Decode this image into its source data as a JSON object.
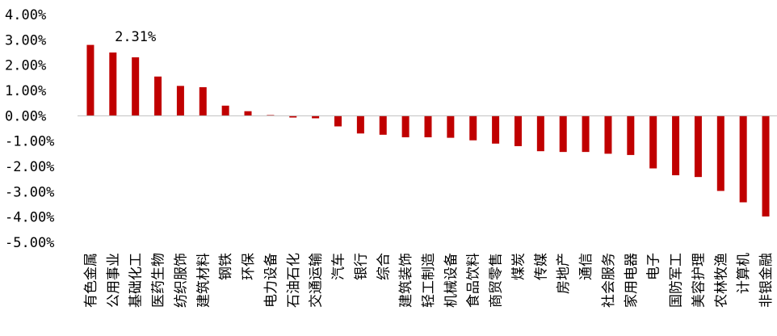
{
  "chart_data": {
    "type": "bar",
    "title": "",
    "xlabel": "",
    "ylabel": "",
    "ylim": [
      -5,
      4
    ],
    "y_ticks": [
      4,
      3,
      2,
      1,
      0,
      -1,
      -2,
      -3,
      -4,
      -5
    ],
    "y_tick_labels": [
      "4.00%",
      "3.00%",
      "2.00%",
      "1.00%",
      "0.00%",
      "-1.00%",
      "-2.00%",
      "-3.00%",
      "-4.00%",
      "-5.00%"
    ],
    "bar_color": "#C00000",
    "grid": false,
    "legend": "none",
    "categories": [
      "有色金属",
      "公用事业",
      "基础化工",
      "医药生物",
      "纺织服饰",
      "建筑材料",
      "钢铁",
      "环保",
      "电力设备",
      "石油石化",
      "交通运输",
      "汽车",
      "银行",
      "综合",
      "建筑装饰",
      "轻工制造",
      "机械设备",
      "食品饮料",
      "商贸零售",
      "煤炭",
      "传媒",
      "房地产",
      "通信",
      "社会服务",
      "家用电器",
      "电子",
      "国防军工",
      "美容护理",
      "农林牧渔",
      "计算机",
      "非银金融"
    ],
    "values": [
      2.8,
      2.5,
      2.31,
      1.55,
      1.18,
      1.13,
      0.4,
      0.18,
      0.03,
      -0.07,
      -0.1,
      -0.42,
      -0.7,
      -0.75,
      -0.85,
      -0.85,
      -0.87,
      -0.97,
      -1.1,
      -1.2,
      -1.4,
      -1.43,
      -1.43,
      -1.5,
      -1.55,
      -2.08,
      -2.35,
      -2.42,
      -2.97,
      -3.42,
      -3.98
    ],
    "data_labels": [
      {
        "index": 2,
        "text": "2.31%"
      }
    ]
  }
}
